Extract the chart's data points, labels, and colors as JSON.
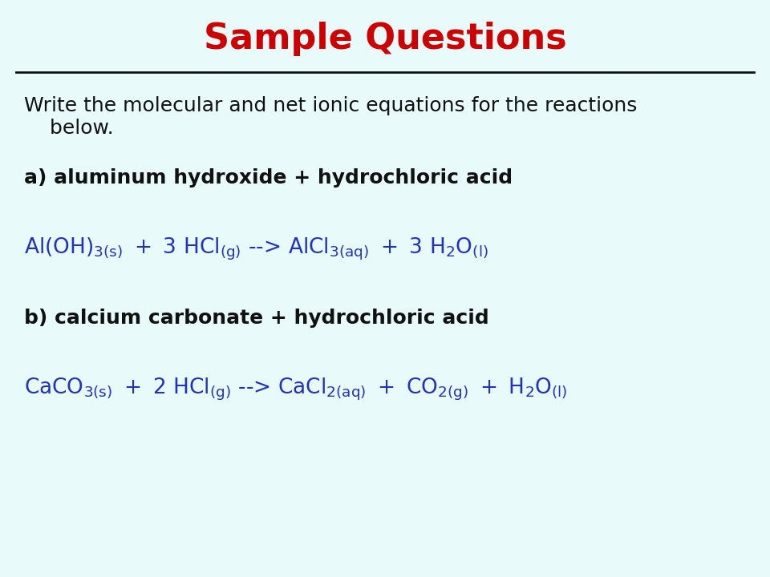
{
  "title": "Sample Questions",
  "title_color": "#CC0000",
  "title_fontsize": 32,
  "background_color": "#E8FAFA",
  "line_color": "#111111",
  "text_color_black": "#111111",
  "text_color_blue": "#2233BB",
  "instruction_line1": "Write the molecular and net ionic equations for the reactions",
  "instruction_line2": "    below.",
  "label_a": "a) aluminum hydroxide + hydrochloric acid",
  "label_b": "b) calcium carbonate + hydrochloric acid",
  "eq1_fontsize": 19,
  "eq2_fontsize": 19,
  "label_fontsize": 18,
  "instr_fontsize": 18
}
